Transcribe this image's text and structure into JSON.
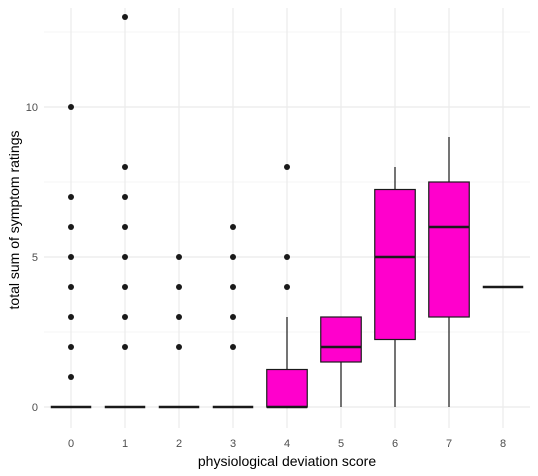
{
  "chart_data": {
    "type": "box",
    "xlabel": "physiological deviation score",
    "ylabel": "total sum of symptom ratings",
    "categories": [
      "0",
      "1",
      "2",
      "3",
      "4",
      "5",
      "6",
      "7",
      "8"
    ],
    "ylim": [
      -0.7,
      13.3
    ],
    "yticks": [
      0,
      5,
      10
    ],
    "grid": true,
    "box_color": "#ff00cc",
    "outline_color": "#1a1a1a",
    "grid_major_color": "#ebebeb",
    "grid_minor_color": "#f5f5f5",
    "boxes": [
      {
        "category": "0",
        "min": 0,
        "q1": 0,
        "median": 0,
        "q3": 0,
        "max": 0,
        "outliers": [
          1,
          2,
          3,
          4,
          5,
          6,
          7,
          10
        ]
      },
      {
        "category": "1",
        "min": 0,
        "q1": 0,
        "median": 0,
        "q3": 0,
        "max": 0,
        "outliers": [
          2,
          3,
          4,
          5,
          6,
          7,
          8,
          13
        ]
      },
      {
        "category": "2",
        "min": 0,
        "q1": 0,
        "median": 0,
        "q3": 0,
        "max": 0,
        "outliers": [
          2,
          3,
          4,
          5
        ]
      },
      {
        "category": "3",
        "min": 0,
        "q1": 0,
        "median": 0,
        "q3": 0,
        "max": 0,
        "outliers": [
          2,
          3,
          4,
          5,
          6
        ]
      },
      {
        "category": "4",
        "min": 0,
        "q1": 0,
        "median": 0,
        "q3": 1.25,
        "max": 3,
        "outliers": [
          4,
          5,
          8
        ]
      },
      {
        "category": "5",
        "min": 0,
        "q1": 1.5,
        "median": 2,
        "q3": 3,
        "max": 3,
        "outliers": []
      },
      {
        "category": "6",
        "min": 0,
        "q1": 2.25,
        "median": 5,
        "q3": 7.25,
        "max": 8,
        "outliers": []
      },
      {
        "category": "7",
        "min": 0,
        "q1": 3,
        "median": 6,
        "q3": 7.5,
        "max": 9,
        "outliers": []
      },
      {
        "category": "8",
        "min": 4,
        "q1": 4,
        "median": 4,
        "q3": 4,
        "max": 4,
        "outliers": []
      }
    ]
  }
}
